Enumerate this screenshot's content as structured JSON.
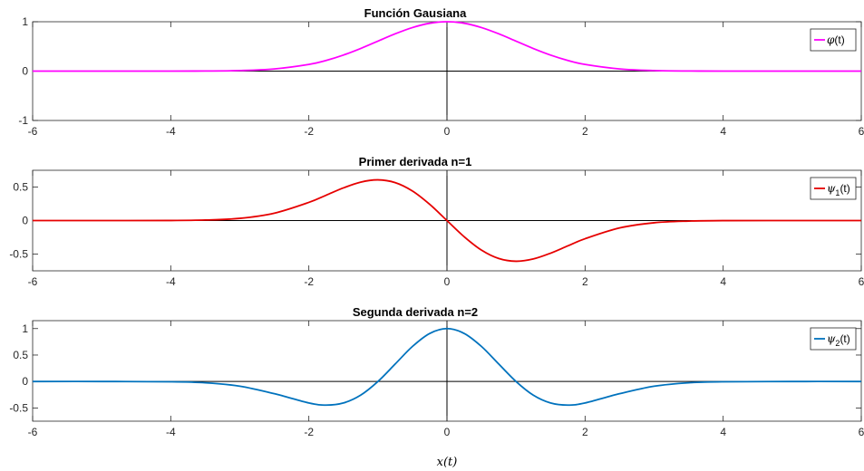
{
  "chart_data": [
    {
      "type": "line",
      "title": "Función Gausiana",
      "xlim": [
        -6,
        6
      ],
      "ylim": [
        -1,
        1
      ],
      "xticks": [
        -6,
        -4,
        -2,
        0,
        2,
        4,
        6
      ],
      "xtick_labels": [
        "-6",
        "-4",
        "-2",
        "0",
        "2",
        "4",
        "6"
      ],
      "yticks": [
        -1,
        0,
        1
      ],
      "ytick_labels": [
        "-1",
        "0",
        "1"
      ],
      "legend_position": "top-right",
      "series": [
        {
          "name": "φ(t)",
          "legend_symbol": "φ",
          "legend_subscript": "",
          "legend_suffix": "(t)",
          "color": "#FF00FF",
          "x": [
            -6,
            -5,
            -4,
            -3.5,
            -3,
            -2.5,
            -2,
            -1.75,
            -1.5,
            -1.25,
            -1,
            -0.75,
            -0.5,
            -0.25,
            0,
            0.25,
            0.5,
            0.75,
            1,
            1.25,
            1.5,
            1.75,
            2,
            2.5,
            3,
            3.5,
            4,
            5,
            6
          ],
          "y": [
            0,
            0,
            0,
            0.002,
            0.011,
            0.044,
            0.135,
            0.216,
            0.325,
            0.458,
            0.607,
            0.755,
            0.882,
            0.969,
            1,
            0.969,
            0.882,
            0.755,
            0.607,
            0.458,
            0.325,
            0.216,
            0.135,
            0.044,
            0.011,
            0.002,
            0,
            0,
            0
          ]
        }
      ]
    },
    {
      "type": "line",
      "title": "Primer derivada n=1",
      "xlim": [
        -6,
        6
      ],
      "ylim": [
        -0.75,
        0.75
      ],
      "xticks": [
        -6,
        -4,
        -2,
        0,
        2,
        4,
        6
      ],
      "xtick_labels": [
        "-6",
        "-4",
        "-2",
        "0",
        "2",
        "4",
        "6"
      ],
      "yticks": [
        -0.5,
        0,
        0.5
      ],
      "ytick_labels": [
        "-0.5",
        "0",
        "0.5"
      ],
      "legend_position": "top-right",
      "series": [
        {
          "name": "ψ1(t)",
          "legend_symbol": "ψ",
          "legend_subscript": "1",
          "legend_suffix": "(t)",
          "color": "#E60000",
          "x": [
            -6,
            -5,
            -4,
            -3.5,
            -3,
            -2.5,
            -2,
            -1.75,
            -1.5,
            -1.25,
            -1,
            -0.75,
            -0.5,
            -0.25,
            0,
            0.25,
            0.5,
            0.75,
            1,
            1.25,
            1.5,
            1.75,
            2,
            2.5,
            3,
            3.5,
            4,
            5,
            6
          ],
          "y": [
            0,
            0,
            0.001,
            0.008,
            0.033,
            0.11,
            0.271,
            0.378,
            0.487,
            0.573,
            0.607,
            0.566,
            0.441,
            0.242,
            0,
            -0.242,
            -0.441,
            -0.566,
            -0.607,
            -0.573,
            -0.487,
            -0.378,
            -0.271,
            -0.11,
            -0.033,
            -0.008,
            -0.001,
            0,
            0
          ]
        }
      ]
    },
    {
      "type": "line",
      "title": "Segunda derivada n=2",
      "xlim": [
        -6,
        6
      ],
      "ylim": [
        -0.75,
        1.15
      ],
      "xticks": [
        -6,
        -4,
        -2,
        0,
        2,
        4,
        6
      ],
      "xtick_labels": [
        "-6",
        "-4",
        "-2",
        "0",
        "2",
        "4",
        "6"
      ],
      "yticks": [
        -0.5,
        0,
        0.5,
        1
      ],
      "ytick_labels": [
        "-0.5",
        "0",
        "0.5",
        "1"
      ],
      "legend_position": "top-right",
      "series": [
        {
          "name": "ψ2(t)",
          "legend_symbol": "ψ",
          "legend_subscript": "2",
          "legend_suffix": "(t)",
          "color": "#0072BD",
          "x": [
            -6,
            -5,
            -4,
            -3.5,
            -3,
            -2.5,
            -2,
            -1.75,
            -1.5,
            -1.25,
            -1,
            -0.75,
            -0.5,
            -0.25,
            0,
            0.25,
            0.5,
            0.75,
            1,
            1.25,
            1.5,
            1.75,
            2,
            2.5,
            3,
            3.5,
            4,
            5,
            6
          ],
          "y": [
            0,
            0,
            -0.005,
            -0.024,
            -0.089,
            -0.231,
            -0.406,
            -0.446,
            -0.406,
            -0.258,
            0,
            0.33,
            0.662,
            0.908,
            1,
            0.908,
            0.662,
            0.33,
            0,
            -0.258,
            -0.406,
            -0.446,
            -0.406,
            -0.231,
            -0.089,
            -0.024,
            -0.005,
            0,
            0
          ]
        }
      ]
    }
  ],
  "xlabel": "x(t)"
}
